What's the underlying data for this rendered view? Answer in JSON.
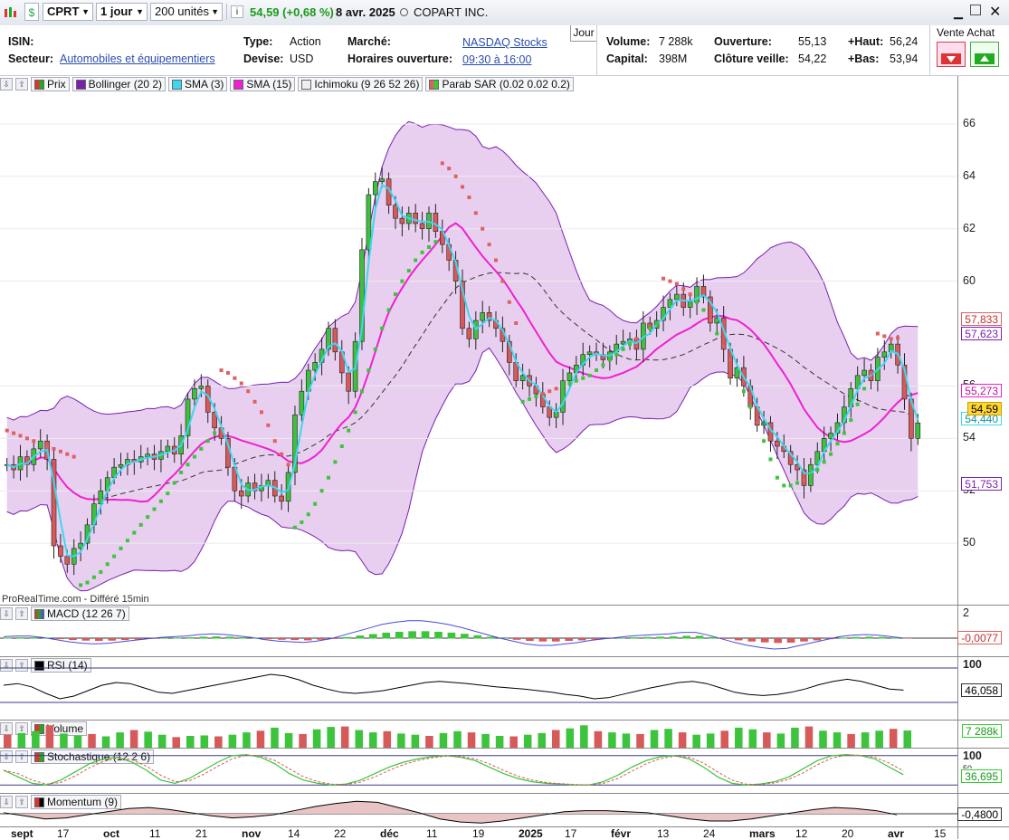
{
  "toolbar": {
    "ticker": "CPRT",
    "period": "1 jour",
    "units": "200 unités",
    "price_change": "54,59 (+0,68 %)",
    "date": "8 avr. 2025",
    "company": "COPART INC.",
    "up_color": "#1a9a1a"
  },
  "info": {
    "isin_label": "ISIN:",
    "sector_label": "Secteur:",
    "sector_value": "Automobiles et équipementiers",
    "type_label": "Type:",
    "type_value": "Action",
    "currency_label": "Devise:",
    "currency_value": "USD",
    "market_label": "Marché:",
    "market_value": "NASDAQ Stocks",
    "hours_label": "Horaires ouverture:",
    "hours_value": "09:30 à 16:00",
    "interval_tab": "Jour",
    "volume_label": "Volume:",
    "volume_value": "7 288k",
    "capital_label": "Capital:",
    "capital_value": "398M",
    "open_label": "Ouverture:",
    "open_value": "55,13",
    "prevclose_label": "Clôture veille:",
    "prevclose_value": "54,22",
    "high_label": "+Haut:",
    "high_value": "56,24",
    "low_label": "+Bas:",
    "low_value": "53,94",
    "sell_buy_label": "Vente Achat"
  },
  "indicators": {
    "price": "Prix",
    "bollinger": "Bollinger (20 2)",
    "sma3": "SMA (3)",
    "sma15": "SMA (15)",
    "ichimoku": "Ichimoku (9 26 52 26)",
    "sar": "Parab SAR (0.02 0.02 0.2)",
    "macd": "MACD (12 26 7)",
    "rsi": "RSI (14)",
    "volume": "Volume",
    "stoch": "Stochastique (12 2 6)",
    "momentum": "Momentum (9)"
  },
  "watermark": "ProRealTime.com - Différé 15min",
  "price_tags": {
    "sar": "57,833",
    "bb_mid_upper": "57,623",
    "bb_mid": "55,273",
    "last": "54,59",
    "sma3": "54,440",
    "bb_lower": "51,753",
    "macd": "-0,0077",
    "rsi": "46,058",
    "volume": "7 288k",
    "stoch": "36,695",
    "momentum": "-0,4800"
  },
  "sub_axes": {
    "macd_top": "2",
    "rsi_top": "100",
    "stoch_top": "100",
    "stoch_mid": "50"
  },
  "chart_data": {
    "type": "candlestick",
    "y_ticks": [
      "66",
      "64",
      "62",
      "60",
      "56",
      "54",
      "52",
      "50"
    ],
    "ylim": [
      48,
      67
    ],
    "x_labels": [
      "sept",
      "17",
      "oct",
      "11",
      "21",
      "nov",
      "14",
      "22",
      "déc",
      "11",
      "19",
      "2025",
      "17",
      "févr",
      "13",
      "24",
      "mars",
      "12",
      "20",
      "avr",
      "15"
    ],
    "closes": [
      53.0,
      52.8,
      53.3,
      53.0,
      53.6,
      53.9,
      53.2,
      49.9,
      49.5,
      49.2,
      49.8,
      50.0,
      50.7,
      51.5,
      52.0,
      52.5,
      52.9,
      53.0,
      53.2,
      53.1,
      53.3,
      53.4,
      53.2,
      53.5,
      53.7,
      53.4,
      54.1,
      55.5,
      55.9,
      56.0,
      55.0,
      54.4,
      54.0,
      52.9,
      52.0,
      51.8,
      52.3,
      52.0,
      52.2,
      52.4,
      51.8,
      51.6,
      52.7,
      54.9,
      55.8,
      56.6,
      56.9,
      57.4,
      58.2,
      57.3,
      56.5,
      55.8,
      57.7,
      61.2,
      63.3,
      63.8,
      63.9,
      62.9,
      62.4,
      62.2,
      62.6,
      62.2,
      62.0,
      62.6,
      61.9,
      61.4,
      60.8,
      60.0,
      58.2,
      57.8,
      58.5,
      58.8,
      58.5,
      58.2,
      57.7,
      56.9,
      56.2,
      56.4,
      56.0,
      55.7,
      55.2,
      54.8,
      55.0,
      56.2,
      56.5,
      56.8,
      57.2,
      57.3,
      57.2,
      57.0,
      57.3,
      57.6,
      57.7,
      57.8,
      57.4,
      58.4,
      58.2,
      58.5,
      59.0,
      59.3,
      59.5,
      59.0,
      59.2,
      59.8,
      59.4,
      58.4,
      58.6,
      57.4,
      56.3,
      56.7,
      56.0,
      55.2,
      54.5,
      54.6,
      53.9,
      53.7,
      53.5,
      53.0,
      52.8,
      52.2,
      53.0,
      53.5,
      54.0,
      54.2,
      54.6,
      55.2,
      55.9,
      56.4,
      56.6,
      56.2,
      57.1,
      57.3,
      57.6,
      56.8,
      55.5,
      54.0,
      54.59
    ],
    "sar": [
      54.3,
      54.2,
      54.1,
      54.0,
      53.9,
      53.8,
      53.7,
      53.6,
      53.5,
      53.4,
      53.3,
      48.4,
      48.5,
      48.7,
      48.9,
      49.2,
      49.5,
      49.8,
      50.1,
      50.4,
      50.7,
      51.0,
      51.3,
      51.6,
      51.9,
      52.3,
      52.7,
      53.0,
      53.3,
      53.6,
      53.9,
      54.2,
      56.6,
      56.5,
      56.3,
      56.1,
      55.8,
      55.4,
      55.0,
      54.5,
      53.9,
      53.4,
      53.0,
      50.6,
      50.8,
      51.1,
      51.5,
      52.0,
      52.5,
      53.1,
      53.7,
      54.3,
      55.0,
      55.8,
      56.6,
      57.4,
      58.2,
      58.9,
      59.5,
      60.0,
      60.4,
      60.8,
      61.1,
      61.3,
      61.5,
      64.5,
      64.3,
      64.0,
      63.6,
      63.2,
      62.6,
      62.0,
      61.4,
      60.8,
      60.0,
      59.2,
      58.4,
      55.4,
      55.5,
      55.6,
      55.7,
      55.8,
      55.9,
      56.0,
      56.1,
      56.2,
      56.3,
      56.4,
      56.6,
      56.8,
      57.0,
      57.2,
      57.4,
      57.6,
      57.8,
      58.0,
      58.2,
      58.4,
      60.1,
      60.0,
      59.9,
      59.7,
      59.5,
      59.2,
      58.9,
      58.5,
      58.0,
      57.5,
      57.0,
      56.4,
      55.8,
      55.2,
      54.6,
      53.9,
      53.2,
      52.5,
      52.2,
      52.2,
      52.3,
      52.4,
      52.6,
      52.8,
      53.1,
      53.4,
      53.8,
      54.2,
      54.7,
      55.3,
      55.9,
      56.5,
      58.0,
      57.9,
      57.8,
      57.833
    ],
    "macd": [
      0.2,
      0.3,
      0.3,
      0.1,
      -0.2,
      -0.5,
      -0.7,
      -0.8,
      -0.7,
      -0.5,
      -0.3,
      -0.1,
      0.1,
      0.2,
      0.3,
      0.5,
      0.6,
      0.5,
      0.3,
      0.1,
      -0.2,
      -0.4,
      -0.5,
      -0.6,
      -0.4,
      -0.1,
      0.4,
      0.9,
      1.4,
      1.9,
      2.2,
      2.4,
      2.4,
      2.2,
      1.9,
      1.5,
      1.0,
      0.5,
      0.0,
      -0.4,
      -0.8,
      -1.0,
      -1.0,
      -0.8,
      -0.6,
      -0.3,
      -0.1,
      0.1,
      0.3,
      0.4,
      0.5,
      0.6,
      0.8,
      0.8,
      0.4,
      -0.1,
      -0.6,
      -1.0,
      -1.3,
      -1.5,
      -1.4,
      -1.0,
      -0.6,
      -0.2,
      0.2,
      0.4,
      0.5,
      0.4,
      0.2,
      -0.0077
    ],
    "rsi": [
      55,
      58,
      52,
      40,
      30,
      35,
      45,
      55,
      60,
      58,
      50,
      42,
      40,
      45,
      50,
      55,
      60,
      65,
      70,
      75,
      72,
      65,
      55,
      48,
      42,
      40,
      42,
      45,
      50,
      55,
      60,
      62,
      60,
      58,
      55,
      52,
      50,
      48,
      45,
      42,
      38,
      35,
      30,
      32,
      38,
      44,
      50,
      55,
      60,
      62,
      58,
      50,
      42,
      38,
      36,
      38,
      42,
      48,
      56,
      62,
      66,
      62,
      55,
      48,
      46.058
    ],
    "volume": [
      5.5,
      6.2,
      7.0,
      9.5,
      6.0,
      5.2,
      5.8,
      4.8,
      6.5,
      7.5,
      6.8,
      5.5,
      4.5,
      5.0,
      5.2,
      4.8,
      5.5,
      6.5,
      7.2,
      8.5,
      6.2,
      5.8,
      7.8,
      8.8,
      9.0,
      7.5,
      6.5,
      7.0,
      6.0,
      5.5,
      5.0,
      6.2,
      7.0,
      6.5,
      5.8,
      5.0,
      4.8,
      5.5,
      6.2,
      7.5,
      8.2,
      9.5,
      7.0,
      6.5,
      6.0,
      5.8,
      7.5,
      8.0,
      6.5,
      5.5,
      6.0,
      7.2,
      8.5,
      7.8,
      6.5,
      6.0,
      8.5,
      9.0,
      7.2,
      6.5,
      5.8,
      6.5,
      7.2,
      8.0,
      7.288
    ],
    "stoch": [
      50,
      30,
      10,
      5,
      20,
      45,
      70,
      85,
      90,
      75,
      50,
      20,
      10,
      25,
      50,
      75,
      95,
      98,
      90,
      70,
      40,
      20,
      10,
      5,
      8,
      20,
      40,
      60,
      75,
      85,
      92,
      95,
      90,
      80,
      60,
      40,
      25,
      15,
      10,
      8,
      5,
      5,
      15,
      35,
      60,
      80,
      92,
      95,
      85,
      60,
      30,
      10,
      5,
      8,
      15,
      30,
      55,
      80,
      95,
      98,
      95,
      85,
      60,
      36.695
    ],
    "momentum": [
      0.5,
      -1.0,
      -2.5,
      -2.0,
      -0.5,
      1.0,
      2.5,
      3.0,
      2.0,
      0.5,
      -1.0,
      -2.0,
      -1.5,
      -0.5,
      1.5,
      3.5,
      5.0,
      6.0,
      5.5,
      3.0,
      0.5,
      -2.5,
      -4.0,
      -4.5,
      -3.5,
      -2.0,
      -0.5,
      1.0,
      1.5,
      1.5,
      1.0,
      0.5,
      -1.0,
      -2.5,
      -3.5,
      -3.5,
      -2.5,
      -1.0,
      0.5,
      2.0,
      3.0,
      2.5,
      1.5,
      -0.48
    ]
  }
}
